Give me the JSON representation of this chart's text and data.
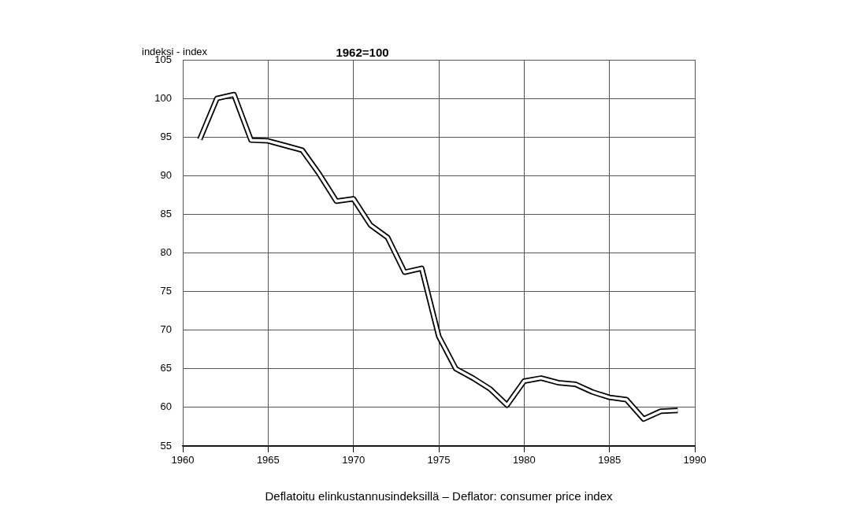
{
  "chart_data": {
    "type": "line",
    "title": "1962=100",
    "ylabel": "indeksi - index",
    "annotations": [
      "Deflatoitu elinkustannusindeksillä – Deflator: consumer price index"
    ],
    "x": [
      1961,
      1962,
      1963,
      1964,
      1965,
      1966,
      1967,
      1968,
      1969,
      1970,
      1971,
      1972,
      1973,
      1974,
      1975,
      1976,
      1977,
      1978,
      1979,
      1980,
      1981,
      1982,
      1983,
      1984,
      1985,
      1986,
      1987,
      1988,
      1989
    ],
    "series": [
      {
        "color": "#000000",
        "values": [
          94.7,
          100.0,
          100.5,
          94.6,
          94.5,
          93.9,
          93.3,
          90.2,
          86.7,
          87.0,
          83.6,
          82.0,
          77.5,
          78.0,
          69.2,
          65.0,
          63.8,
          62.4,
          60.3,
          63.4,
          63.8,
          63.2,
          63.0,
          62.0,
          61.3,
          61.0,
          58.5,
          59.5,
          59.6
        ]
      }
    ],
    "xlim": [
      1960,
      1990
    ],
    "xticks": [
      1960,
      1965,
      1970,
      1975,
      1980,
      1985,
      1990
    ],
    "ylim": [
      55,
      105
    ],
    "yticks": [
      55,
      60,
      65,
      70,
      75,
      80,
      85,
      90,
      95,
      100,
      105
    ],
    "grid": true,
    "legend": false,
    "marker": "none",
    "line_style": "solid"
  }
}
